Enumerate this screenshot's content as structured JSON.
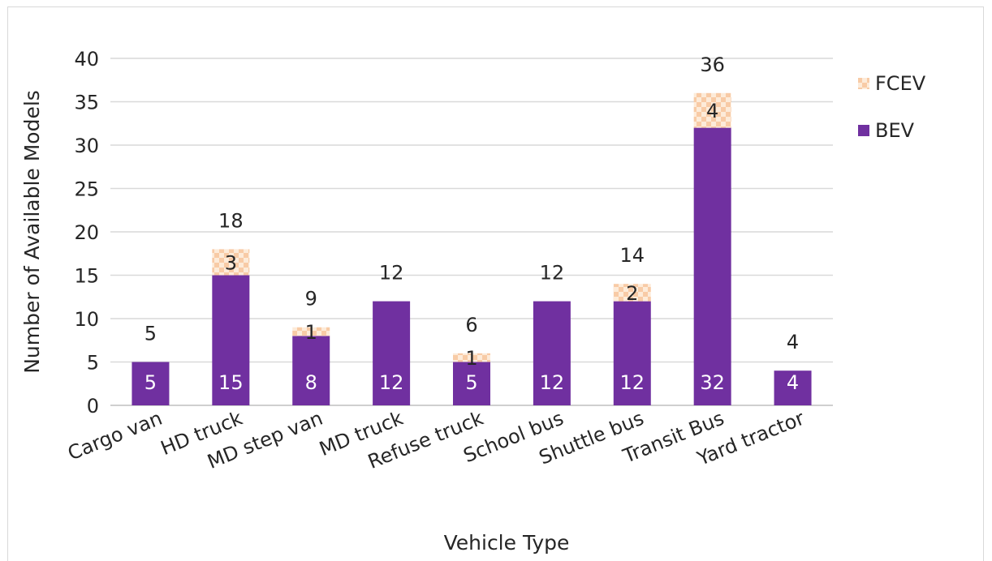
{
  "chart_data": {
    "type": "bar",
    "stacked": true,
    "title": "",
    "xlabel": "Vehicle Type",
    "ylabel": "Number of Available Models",
    "ylim": [
      0,
      40
    ],
    "yticks": [
      0,
      5,
      10,
      15,
      20,
      25,
      30,
      35,
      40
    ],
    "grid": true,
    "legend_position": "top-right",
    "categories": [
      "Cargo van",
      "HD truck",
      "MD step van",
      "MD truck",
      "Refuse truck",
      "School bus",
      "Shuttle bus",
      "Transit Bus",
      "Yard tractor"
    ],
    "series": [
      {
        "name": "BEV",
        "values": [
          5,
          15,
          8,
          12,
          5,
          12,
          12,
          32,
          4
        ],
        "color": "#7030a0"
      },
      {
        "name": "FCEV",
        "values": [
          0,
          3,
          1,
          0,
          1,
          0,
          2,
          4,
          0
        ],
        "color": "#f8cba6",
        "pattern": "checker"
      }
    ],
    "totals": [
      5,
      18,
      9,
      12,
      6,
      12,
      14,
      36,
      4
    ]
  }
}
